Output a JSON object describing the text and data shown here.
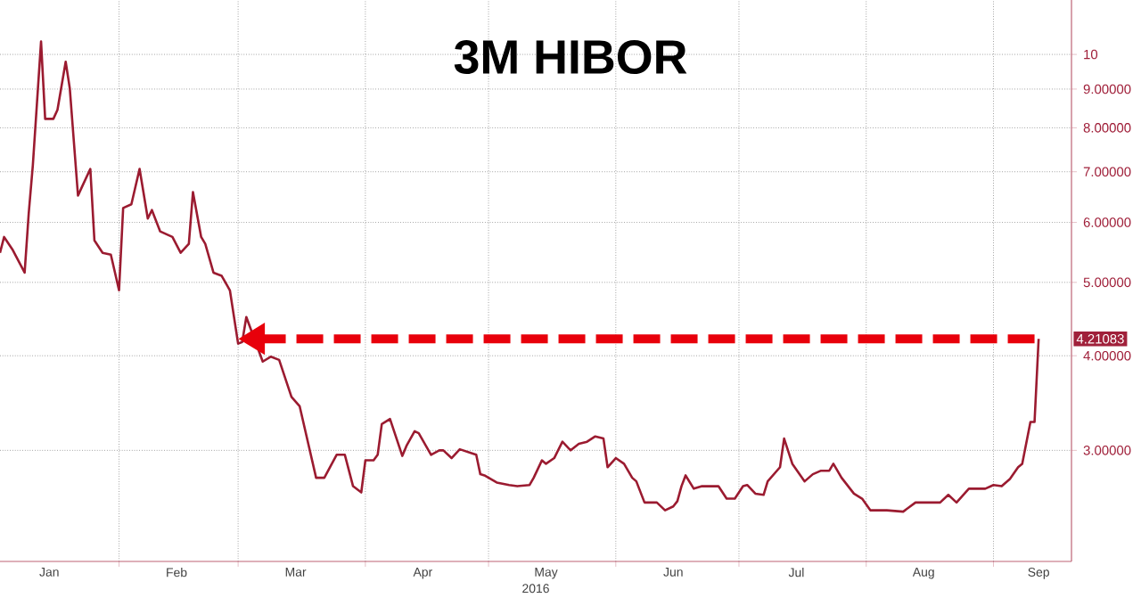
{
  "chart_data": {
    "type": "line",
    "title": "3M HIBOR",
    "xlabel": "2016",
    "x": [
      "2016-01-03",
      "2016-01-04",
      "2016-01-06",
      "2016-01-09",
      "2016-01-10",
      "2016-01-11",
      "2016-01-13",
      "2016-01-14",
      "2016-01-16",
      "2016-01-17",
      "2016-01-19",
      "2016-01-20",
      "2016-01-22",
      "2016-01-23",
      "2016-01-25",
      "2016-01-26",
      "2016-01-28",
      "2016-01-30",
      "2016-02-01",
      "2016-02-02",
      "2016-02-04",
      "2016-02-06",
      "2016-02-08",
      "2016-02-09",
      "2016-02-11",
      "2016-02-14",
      "2016-02-16",
      "2016-02-18",
      "2016-02-19",
      "2016-02-21",
      "2016-02-22",
      "2016-02-24",
      "2016-02-26",
      "2016-02-28",
      "2016-03-01",
      "2016-03-02",
      "2016-03-03",
      "2016-03-07",
      "2016-03-09",
      "2016-03-11",
      "2016-03-14",
      "2016-03-16",
      "2016-03-20",
      "2016-03-22",
      "2016-03-25",
      "2016-03-27",
      "2016-03-29",
      "2016-03-31",
      "2016-04-01",
      "2016-04-03",
      "2016-04-04",
      "2016-04-05",
      "2016-04-07",
      "2016-04-10",
      "2016-04-11",
      "2016-04-13",
      "2016-04-14",
      "2016-04-17",
      "2016-04-19",
      "2016-04-20",
      "2016-04-22",
      "2016-04-24",
      "2016-04-28",
      "2016-04-29",
      "2016-04-30",
      "2016-05-03",
      "2016-05-06",
      "2016-05-08",
      "2016-05-11",
      "2016-05-12",
      "2016-05-14",
      "2016-05-15",
      "2016-05-17",
      "2016-05-19",
      "2016-05-21",
      "2016-05-23",
      "2016-05-25",
      "2016-05-27",
      "2016-05-29",
      "2016-05-30",
      "2016-06-01",
      "2016-06-03",
      "2016-06-05",
      "2016-06-06",
      "2016-06-08",
      "2016-06-11",
      "2016-06-13",
      "2016-06-15",
      "2016-06-16",
      "2016-06-17",
      "2016-06-18",
      "2016-06-20",
      "2016-06-22",
      "2016-06-24",
      "2016-06-26",
      "2016-06-28",
      "2016-06-30",
      "2016-07-02",
      "2016-07-03",
      "2016-07-05",
      "2016-07-07",
      "2016-07-08",
      "2016-07-11",
      "2016-07-12",
      "2016-07-14",
      "2016-07-17",
      "2016-07-19",
      "2016-07-21",
      "2016-07-23",
      "2016-07-24",
      "2016-07-26",
      "2016-07-29",
      "2016-07-31",
      "2016-08-02",
      "2016-08-06",
      "2016-08-10",
      "2016-08-13",
      "2016-08-19",
      "2016-08-21",
      "2016-08-23",
      "2016-08-26",
      "2016-08-30",
      "2016-09-01",
      "2016-09-03",
      "2016-09-05",
      "2016-09-07",
      "2016-09-08",
      "2016-09-10",
      "2016-09-11",
      "2016-09-12"
    ],
    "series": [
      {
        "color": "#9b1b30",
        "values": [
          5.47,
          5.74,
          5.53,
          5.15,
          6.17,
          7.14,
          10.4,
          8.22,
          8.22,
          8.45,
          9.78,
          9.02,
          6.51,
          6.69,
          7.06,
          5.68,
          5.47,
          5.44,
          4.88,
          6.27,
          6.34,
          7.06,
          6.07,
          6.23,
          5.84,
          5.74,
          5.47,
          5.62,
          6.58,
          5.74,
          5.62,
          5.15,
          5.1,
          4.88,
          4.15,
          4.17,
          4.5,
          3.93,
          3.99,
          3.95,
          3.53,
          3.43,
          2.76,
          2.76,
          2.96,
          2.96,
          2.69,
          2.64,
          2.91,
          2.91,
          2.96,
          3.25,
          3.3,
          2.95,
          3.04,
          3.18,
          3.16,
          2.96,
          3.0,
          3.0,
          2.93,
          3.01,
          2.96,
          2.79,
          2.78,
          2.72,
          2.7,
          2.69,
          2.7,
          2.76,
          2.91,
          2.88,
          2.93,
          3.08,
          3.0,
          3.06,
          3.08,
          3.13,
          3.11,
          2.85,
          2.93,
          2.88,
          2.76,
          2.73,
          2.56,
          2.56,
          2.5,
          2.53,
          2.57,
          2.69,
          2.78,
          2.67,
          2.69,
          2.69,
          2.69,
          2.59,
          2.59,
          2.69,
          2.7,
          2.63,
          2.62,
          2.73,
          2.85,
          3.11,
          2.88,
          2.73,
          2.79,
          2.82,
          2.82,
          2.88,
          2.76,
          2.63,
          2.59,
          2.5,
          2.5,
          2.49,
          2.56,
          2.56,
          2.62,
          2.56,
          2.67,
          2.67,
          2.7,
          2.69,
          2.75,
          2.85,
          2.88,
          3.27,
          3.27,
          4.21083
        ]
      }
    ],
    "annotations": [
      {
        "text": "4.21083",
        "x": "2016-09-12",
        "y": 4.21083
      }
    ],
    "xlim": [
      "2016-01-03",
      "2016-09-20"
    ],
    "xticks": [
      {
        "value": "2016-02-01",
        "label": null
      },
      {
        "value": "2016-03-01",
        "label": null
      },
      {
        "value": "2016-04-01",
        "label": null
      },
      {
        "value": "2016-05-01",
        "label": null
      },
      {
        "value": "2016-06-01",
        "label": null
      },
      {
        "value": "2016-07-01",
        "label": null
      },
      {
        "value": "2016-08-01",
        "label": null
      },
      {
        "value": "2016-09-01",
        "label": null
      },
      {
        "value": "2016-01-15",
        "label": "Jan"
      },
      {
        "value": "2016-02-15",
        "label": "Feb"
      },
      {
        "value": "2016-03-15",
        "label": "Mar"
      },
      {
        "value": "2016-04-15",
        "label": "Apr"
      },
      {
        "value": "2016-05-15",
        "label": "May"
      },
      {
        "value": "2016-06-15",
        "label": "Jun"
      },
      {
        "value": "2016-07-15",
        "label": "Jul"
      },
      {
        "value": "2016-08-15",
        "label": "Aug"
      },
      {
        "value": "2016-09-12",
        "label": "Sep"
      }
    ],
    "ylim": [
      2.14,
      11.8
    ],
    "yticks": [
      {
        "value": 3,
        "label": "3.00000"
      },
      {
        "value": 4,
        "label": "4.00000"
      },
      {
        "value": 5,
        "label": "5.00000"
      },
      {
        "value": 6,
        "label": "6.00000"
      },
      {
        "value": 7,
        "label": "7.00000"
      },
      {
        "value": 8,
        "label": "8.00000"
      },
      {
        "value": 9,
        "label": "9.00000"
      },
      10
    ],
    "log": "y",
    "grid": true
  }
}
